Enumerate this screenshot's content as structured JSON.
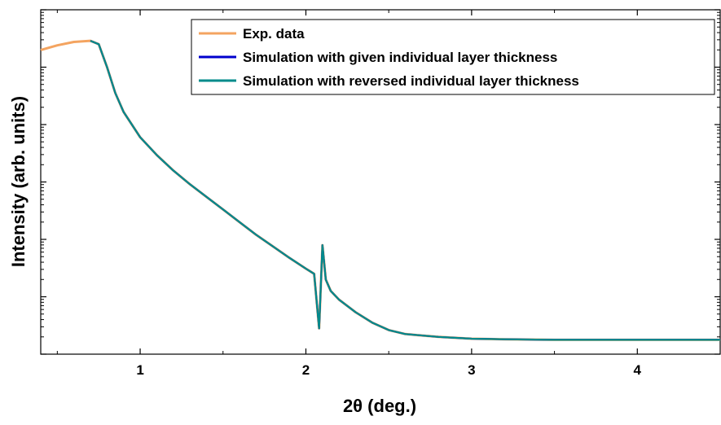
{
  "chart_data": {
    "type": "line",
    "title": "",
    "xlabel": "2θ (deg.)",
    "ylabel": "Intensity (arb. units)",
    "xlim": [
      0.4,
      4.5
    ],
    "ylim": [
      0,
      6
    ],
    "y_scale": "log",
    "x_ticks": [
      "1",
      "2",
      "3",
      "4"
    ],
    "x_tick_values": [
      1,
      2,
      3,
      4
    ],
    "grid": false,
    "legend_position": "top-right",
    "series": [
      {
        "name": "Exp. data",
        "color": "#f4a460",
        "x": [
          0.4,
          0.5,
          0.6,
          0.7,
          0.75,
          0.8,
          0.85,
          0.9,
          1.0,
          1.1,
          1.2,
          1.3,
          1.4,
          1.5,
          1.6,
          1.7,
          1.8,
          1.9,
          2.0,
          2.05,
          2.08,
          2.1,
          2.12,
          2.15,
          2.2,
          2.3,
          2.4,
          2.5,
          2.6,
          2.8,
          3.0,
          3.2,
          3.5,
          3.8,
          4.0,
          4.2,
          4.5
        ],
        "y": [
          5.3,
          5.38,
          5.44,
          5.46,
          5.4,
          5.0,
          4.55,
          4.22,
          3.78,
          3.47,
          3.2,
          2.96,
          2.74,
          2.52,
          2.3,
          2.08,
          1.88,
          1.68,
          1.49,
          1.4,
          0.45,
          1.9,
          1.3,
          1.1,
          0.95,
          0.73,
          0.55,
          0.42,
          0.35,
          0.3,
          0.27,
          0.26,
          0.25,
          0.25,
          0.25,
          0.25,
          0.25
        ]
      },
      {
        "name": "Simulation with given individual layer thickness",
        "color": "#0000cd",
        "x": [
          0.7,
          0.75,
          0.8,
          0.85,
          0.9,
          1.0,
          1.1,
          1.2,
          1.3,
          1.4,
          1.5,
          1.6,
          1.7,
          1.8,
          1.9,
          2.0,
          2.05,
          2.08,
          2.1,
          2.12,
          2.15,
          2.2,
          2.3,
          2.4,
          2.5,
          2.6,
          2.8,
          3.0,
          3.2,
          3.5,
          3.8,
          4.0,
          4.2,
          4.5
        ],
        "y": [
          5.46,
          5.4,
          5.0,
          4.55,
          4.22,
          3.78,
          3.47,
          3.2,
          2.96,
          2.74,
          2.52,
          2.3,
          2.08,
          1.88,
          1.68,
          1.49,
          1.4,
          0.45,
          1.9,
          1.3,
          1.1,
          0.95,
          0.73,
          0.55,
          0.42,
          0.35,
          0.3,
          0.27,
          0.26,
          0.25,
          0.25,
          0.25,
          0.25,
          0.25
        ]
      },
      {
        "name": "Simulation with reversed individual layer thickness",
        "color": "#008b8b",
        "x": [
          0.7,
          0.75,
          0.8,
          0.85,
          0.9,
          1.0,
          1.1,
          1.2,
          1.3,
          1.4,
          1.5,
          1.6,
          1.7,
          1.8,
          1.9,
          2.0,
          2.05,
          2.08,
          2.1,
          2.12,
          2.15,
          2.2,
          2.3,
          2.4,
          2.5,
          2.6,
          2.8,
          3.0,
          3.2,
          3.5,
          3.8,
          4.0,
          4.2,
          4.5
        ],
        "y": [
          5.46,
          5.4,
          5.0,
          4.55,
          4.22,
          3.78,
          3.47,
          3.2,
          2.96,
          2.74,
          2.52,
          2.3,
          2.08,
          1.88,
          1.68,
          1.49,
          1.4,
          0.45,
          1.9,
          1.3,
          1.1,
          0.95,
          0.73,
          0.55,
          0.42,
          0.35,
          0.3,
          0.27,
          0.26,
          0.25,
          0.25,
          0.25,
          0.25,
          0.25
        ]
      }
    ]
  }
}
